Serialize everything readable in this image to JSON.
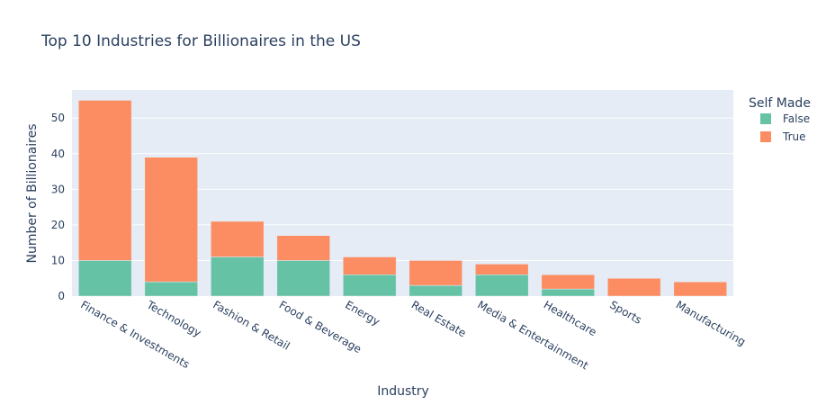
{
  "chart_data": {
    "type": "bar",
    "barmode": "stack",
    "title": "Top 10 Industries for Billionaires in the US",
    "xlabel": "Industry",
    "ylabel": "Number of Billionaires",
    "categories": [
      "Finance & Investments",
      "Technology",
      "Fashion & Retail",
      "Food & Beverage",
      "Energy",
      "Real Estate",
      "Media & Entertainment",
      "Healthcare",
      "Sports",
      "Manufacturing"
    ],
    "series": [
      {
        "name": "False",
        "color": "#66c2a5",
        "values": [
          10,
          4,
          11,
          10,
          6,
          3,
          6,
          2,
          0,
          0
        ]
      },
      {
        "name": "True",
        "color": "#fc8d62",
        "values": [
          45,
          35,
          10,
          7,
          5,
          7,
          3,
          4,
          5,
          4
        ]
      }
    ],
    "ylim": [
      0,
      57.9
    ],
    "yticks": [
      0,
      10,
      20,
      30,
      40,
      50
    ],
    "grid": true,
    "legend": {
      "title": "Self Made",
      "placement": "top-right"
    },
    "colors": {
      "plot_bg": "#e5ecf6",
      "grid": "#ffffff",
      "text": "#2a3f5f"
    }
  }
}
